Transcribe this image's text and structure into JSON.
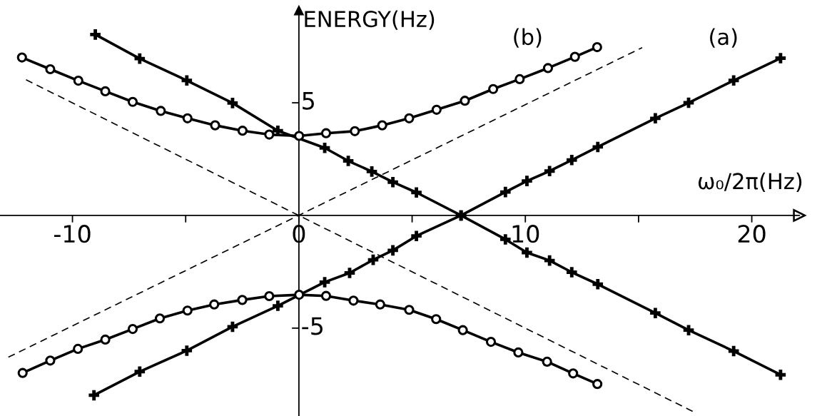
{
  "chart_data": {
    "type": "line",
    "xlabel": "ω₀/2π(Hz)",
    "ylabel": "ENERGY(Hz)",
    "xlim": [
      -13.2,
      22.1
    ],
    "ylim": [
      -8.9,
      9.1
    ],
    "xticks": [
      -10,
      {
        "value": -5,
        "label": null
      },
      0,
      {
        "value": 5,
        "label": null
      },
      10,
      {
        "value": 15,
        "label": null
      },
      20
    ],
    "yticks": [
      {
        "value": -5,
        "label": "-5"
      },
      5
    ],
    "grid": false,
    "legend": false,
    "annotations": [
      "(b)",
      "(a)"
    ],
    "series": [
      {
        "color": "#000000",
        "marker": "cross",
        "line_style": "solid",
        "x": [
          -9.05,
          -7.03,
          -4.95,
          -2.93,
          -0.93,
          1.14,
          2.24,
          3.28,
          4.15,
          5.19,
          7.16,
          9.12,
          10.07,
          11.07,
          12.05,
          13.2,
          15.74,
          17.21,
          19.2,
          21.27
        ],
        "values": [
          -7.98,
          -6.93,
          -6.0,
          -4.94,
          -4.01,
          -2.96,
          -2.55,
          -1.97,
          -1.55,
          -0.91,
          0,
          1.04,
          1.53,
          1.97,
          2.46,
          3.04,
          4.31,
          5.0,
          5.99,
          6.98
        ]
      },
      {
        "color": "#000000",
        "marker": "cross",
        "line_style": "solid",
        "x": [
          -8.99,
          -7.03,
          -4.95,
          -2.93,
          -0.93,
          1.14,
          2.18,
          3.22,
          4.15,
          5.19,
          7.16,
          9.12,
          10.07,
          11.07,
          12.05,
          13.2,
          15.74,
          17.21,
          19.2,
          21.27
        ],
        "values": [
          8.03,
          6.96,
          5.99,
          4.99,
          3.76,
          3.0,
          2.42,
          1.95,
          1.48,
          1.02,
          0,
          -1.06,
          -1.65,
          -2.0,
          -2.52,
          -3.05,
          -4.33,
          -5.09,
          -6.02,
          -7.07
        ]
      },
      {
        "color": "#000000",
        "marker": "circle",
        "line_style": "solid",
        "x": [
          -12.23,
          -10.98,
          -9.74,
          -8.55,
          -7.34,
          -6.1,
          -4.92,
          -3.7,
          -2.49,
          -1.31,
          0.01,
          1.2,
          2.47,
          3.68,
          4.87,
          6.08,
          7.33,
          8.58,
          9.75,
          11.0,
          12.19,
          13.17
        ],
        "values": [
          7.01,
          6.49,
          5.98,
          5.51,
          5.04,
          4.64,
          4.31,
          4.0,
          3.76,
          3.59,
          3.53,
          3.65,
          3.74,
          4.0,
          4.31,
          4.69,
          5.09,
          5.61,
          6.05,
          6.54,
          7.04,
          7.47
        ]
      },
      {
        "color": "#000000",
        "marker": "circle",
        "line_style": "solid",
        "x": [
          -12.2,
          -10.98,
          -9.76,
          -8.55,
          -7.34,
          -6.14,
          -4.92,
          -3.74,
          -2.5,
          -1.31,
          0.01,
          1.2,
          2.41,
          3.59,
          4.87,
          6.06,
          7.24,
          8.48,
          9.69,
          10.96,
          12.11,
          13.18
        ],
        "values": [
          -6.99,
          -6.44,
          -5.92,
          -5.51,
          -5.04,
          -4.57,
          -4.22,
          -3.95,
          -3.75,
          -3.58,
          -3.52,
          -3.57,
          -3.78,
          -3.95,
          -4.19,
          -4.6,
          -5.09,
          -5.61,
          -6.08,
          -6.49,
          -7.01,
          -7.48
        ]
      },
      {
        "color": "#000000",
        "marker": "none",
        "line_style": "dashed",
        "x": [
          -12.05,
          17.4
        ],
        "values": [
          6.02,
          -8.7
        ]
      },
      {
        "color": "#000000",
        "marker": "none",
        "line_style": "dashed",
        "x": [
          -12.83,
          15.16
        ],
        "values": [
          -6.29,
          7.45
        ]
      }
    ]
  }
}
